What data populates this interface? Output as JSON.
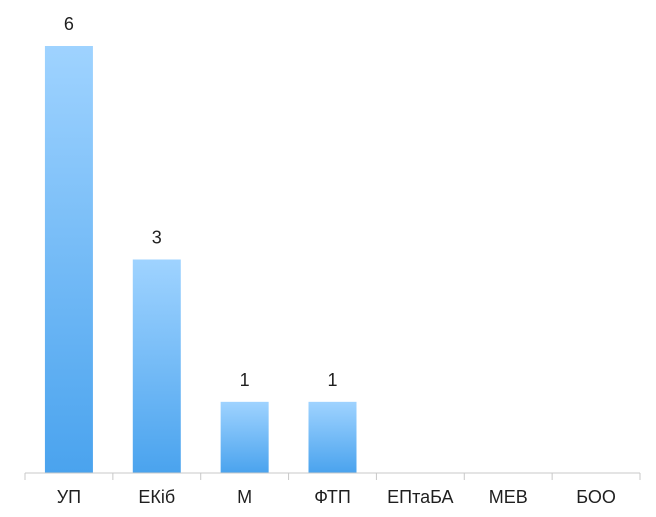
{
  "chart_data": {
    "type": "bar",
    "categories": [
      "УП",
      "ЕКіб",
      "М",
      "ФТП",
      "ЕПтаБА",
      "МЕВ",
      "БОО"
    ],
    "values": [
      6,
      3,
      1,
      1,
      0,
      0,
      0
    ],
    "data_labels": [
      "6",
      "3",
      "1",
      "1",
      "",
      "",
      ""
    ],
    "ylim": [
      0,
      6
    ],
    "grid": false,
    "legend": "none",
    "bar_color_top": "#9fd3ff",
    "bar_color_bottom": "#4aa3ee",
    "axis_color": "#c8c8c8"
  }
}
